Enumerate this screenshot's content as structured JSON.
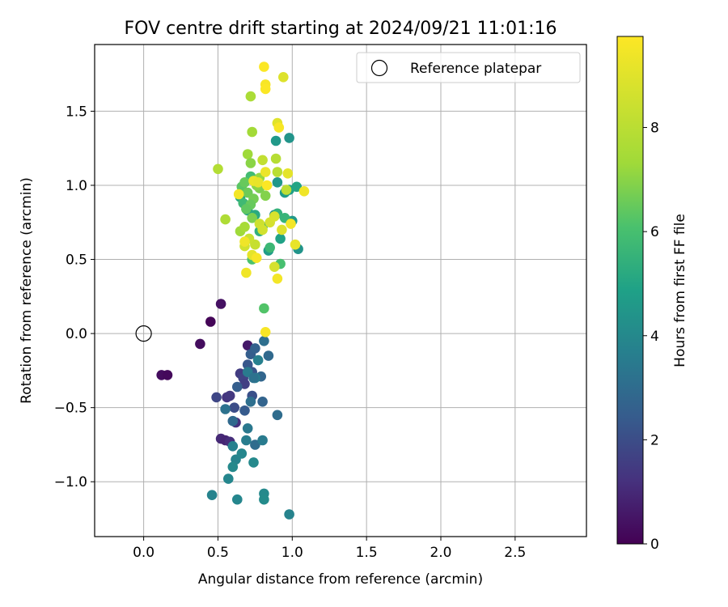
{
  "chart_data": {
    "type": "scatter",
    "title": "FOV centre drift starting at 2024/09/21 11:01:16",
    "xlabel": "Angular distance from reference (arcmin)",
    "ylabel": "Rotation from reference (arcmin)",
    "xlim": [
      -0.33,
      2.98
    ],
    "ylim": [
      -1.37,
      1.95
    ],
    "xticks": [
      0.0,
      0.5,
      1.0,
      1.5,
      2.0,
      2.5
    ],
    "xtick_labels": [
      "0.0",
      "0.5",
      "1.0",
      "1.5",
      "2.0",
      "2.5"
    ],
    "yticks": [
      -1.0,
      -0.5,
      0.0,
      0.5,
      1.0,
      1.5
    ],
    "ytick_labels": [
      "−1.0",
      "−0.5",
      "0.0",
      "0.5",
      "1.0",
      "1.5"
    ],
    "grid": true,
    "legend": {
      "placement": "top-right",
      "entries": [
        {
          "label": "Reference platepar",
          "marker": "open-circle"
        }
      ]
    },
    "reference_point": {
      "x": 0.0,
      "y": 0.0
    },
    "colorbar": {
      "label": "Hours from first FF file",
      "min": 0.0,
      "max": 9.75,
      "ticks": [
        0,
        2,
        4,
        6,
        8
      ],
      "tick_labels": [
        "0",
        "2",
        "4",
        "6",
        "8"
      ],
      "colormap": "viridis"
    },
    "point_fields": [
      "x",
      "y",
      "hours"
    ],
    "points": [
      [
        0.12,
        -0.28,
        0.3
      ],
      [
        0.16,
        -0.28,
        0.2
      ],
      [
        0.38,
        -0.07,
        0.3
      ],
      [
        0.45,
        0.08,
        0.1
      ],
      [
        0.52,
        0.2,
        0.4
      ],
      [
        0.7,
        -0.08,
        0.6
      ],
      [
        0.52,
        -0.71,
        1.0
      ],
      [
        0.55,
        -0.72,
        0.9
      ],
      [
        0.58,
        -0.73,
        1.1
      ],
      [
        0.62,
        -0.6,
        1.2
      ],
      [
        0.56,
        -0.43,
        1.3
      ],
      [
        0.58,
        -0.42,
        1.4
      ],
      [
        0.49,
        -0.43,
        1.8
      ],
      [
        0.65,
        -0.27,
        1.5
      ],
      [
        0.67,
        -0.3,
        1.7
      ],
      [
        0.68,
        -0.34,
        1.6
      ],
      [
        0.61,
        -0.5,
        2.0
      ],
      [
        0.73,
        -0.42,
        2.1
      ],
      [
        0.68,
        -0.52,
        2.4
      ],
      [
        0.73,
        -0.26,
        2.2
      ],
      [
        0.7,
        -0.21,
        2.3
      ],
      [
        0.72,
        -0.14,
        2.5
      ],
      [
        0.75,
        -0.1,
        2.6
      ],
      [
        0.79,
        -0.29,
        2.8
      ],
      [
        0.84,
        -0.15,
        2.9
      ],
      [
        0.81,
        -0.05,
        3.1
      ],
      [
        0.9,
        -0.55,
        3.0
      ],
      [
        0.8,
        -0.46,
        2.7
      ],
      [
        0.6,
        -0.59,
        2.9
      ],
      [
        0.63,
        -0.36,
        2.5
      ],
      [
        0.72,
        -0.46,
        3.1
      ],
      [
        0.55,
        -0.51,
        3.2
      ],
      [
        0.7,
        -0.64,
        3.4
      ],
      [
        0.75,
        -0.75,
        3.0
      ],
      [
        0.8,
        -0.72,
        3.5
      ],
      [
        0.69,
        -0.72,
        3.6
      ],
      [
        0.6,
        -0.76,
        3.7
      ],
      [
        0.62,
        -0.85,
        3.8
      ],
      [
        0.66,
        -0.81,
        3.9
      ],
      [
        0.6,
        -0.9,
        4.0
      ],
      [
        0.74,
        -0.87,
        4.0
      ],
      [
        0.57,
        -0.98,
        3.9
      ],
      [
        0.46,
        -1.09,
        3.8
      ],
      [
        0.63,
        -1.12,
        3.9
      ],
      [
        0.81,
        -1.08,
        4.0
      ],
      [
        0.81,
        -1.12,
        4.1
      ],
      [
        0.98,
        -1.22,
        3.8
      ],
      [
        0.75,
        -0.3,
        3.6
      ],
      [
        0.77,
        -0.18,
        3.7
      ],
      [
        0.7,
        -0.26,
        3.5
      ],
      [
        0.74,
        -0.3,
        3.2
      ],
      [
        0.98,
        1.32,
        4.4
      ],
      [
        0.89,
        1.3,
        4.6
      ],
      [
        0.9,
        1.02,
        4.5
      ],
      [
        0.95,
        0.95,
        4.7
      ],
      [
        0.98,
        0.97,
        4.8
      ],
      [
        1.0,
        0.76,
        4.6
      ],
      [
        1.04,
        0.57,
        4.4
      ],
      [
        0.92,
        0.64,
        4.9
      ],
      [
        0.88,
        0.8,
        4.2
      ],
      [
        0.84,
        0.56,
        4.7
      ],
      [
        0.7,
        0.83,
        5.0
      ],
      [
        0.65,
        0.92,
        5.1
      ],
      [
        0.75,
        0.8,
        5.2
      ],
      [
        0.8,
        0.72,
        5.3
      ],
      [
        0.78,
        0.69,
        5.4
      ],
      [
        0.9,
        0.81,
        5.5
      ],
      [
        0.95,
        0.78,
        5.6
      ],
      [
        1.03,
        0.99,
        5.0
      ],
      [
        0.67,
        0.88,
        5.8
      ],
      [
        0.72,
        1.06,
        5.9
      ],
      [
        0.85,
        0.58,
        5.7
      ],
      [
        0.92,
        0.47,
        6.0
      ],
      [
        0.81,
        0.17,
        6.2
      ],
      [
        0.73,
        0.5,
        6.1
      ],
      [
        0.66,
        0.99,
        6.3
      ],
      [
        0.68,
        1.02,
        6.5
      ],
      [
        0.7,
        0.95,
        6.6
      ],
      [
        0.74,
        0.91,
        6.7
      ],
      [
        0.78,
        0.98,
        6.8
      ],
      [
        0.82,
        0.93,
        6.9
      ],
      [
        0.76,
        1.0,
        7.0
      ],
      [
        0.72,
        0.87,
        6.5
      ],
      [
        0.69,
        0.84,
        6.4
      ],
      [
        0.73,
        0.78,
        6.8
      ],
      [
        0.78,
        1.05,
        7.2
      ],
      [
        0.76,
        1.02,
        7.1
      ],
      [
        0.7,
        1.21,
        7.3
      ],
      [
        0.73,
        1.36,
        7.4
      ],
      [
        0.72,
        1.6,
        7.6
      ],
      [
        0.5,
        1.11,
        7.8
      ],
      [
        0.55,
        0.77,
        7.7
      ],
      [
        0.65,
        0.69,
        7.3
      ],
      [
        0.68,
        0.72,
        7.5
      ],
      [
        0.89,
        1.18,
        7.9
      ],
      [
        0.9,
        1.09,
        8.0
      ],
      [
        0.96,
        0.97,
        8.1
      ],
      [
        0.72,
        1.15,
        7.0
      ],
      [
        0.8,
        1.17,
        8.2
      ],
      [
        0.75,
        0.6,
        8.3
      ],
      [
        0.71,
        0.64,
        8.4
      ],
      [
        0.68,
        0.59,
        8.6
      ],
      [
        0.78,
        0.74,
        8.5
      ],
      [
        0.85,
        0.75,
        8.7
      ],
      [
        0.88,
        0.79,
        8.8
      ],
      [
        0.93,
        0.7,
        8.9
      ],
      [
        0.9,
        1.42,
        9.0
      ],
      [
        0.97,
        1.08,
        9.1
      ],
      [
        1.02,
        0.6,
        9.2
      ],
      [
        0.82,
        1.09,
        9.3
      ],
      [
        0.69,
        0.41,
        9.4
      ],
      [
        0.9,
        0.37,
        9.5
      ],
      [
        0.82,
        0.01,
        9.6
      ],
      [
        0.74,
        1.03,
        9.3
      ],
      [
        0.77,
        1.02,
        9.2
      ],
      [
        0.64,
        0.94,
        9.5
      ],
      [
        0.68,
        0.62,
        9.4
      ],
      [
        0.73,
        0.53,
        9.1
      ],
      [
        0.76,
        0.51,
        9.6
      ],
      [
        0.83,
        1.0,
        9.7
      ],
      [
        0.91,
        1.39,
        9.6
      ],
      [
        0.94,
        1.73,
        8.9
      ],
      [
        0.81,
        1.8,
        9.7
      ],
      [
        0.82,
        1.68,
        9.6
      ],
      [
        0.82,
        1.65,
        9.7
      ],
      [
        0.99,
        0.74,
        9.5
      ],
      [
        1.08,
        0.96,
        9.4
      ],
      [
        0.8,
        0.7,
        8.6
      ],
      [
        0.88,
        0.45,
        8.7
      ]
    ]
  }
}
